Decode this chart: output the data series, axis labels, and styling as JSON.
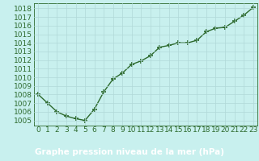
{
  "x": [
    0,
    1,
    2,
    3,
    4,
    5,
    6,
    7,
    8,
    9,
    10,
    11,
    12,
    13,
    14,
    15,
    16,
    17,
    18,
    19,
    20,
    21,
    22,
    23
  ],
  "y": [
    1008,
    1007,
    1006,
    1005.5,
    1005.2,
    1005,
    1006.3,
    1008.3,
    1009.8,
    1010.5,
    1011.5,
    1011.9,
    1012.5,
    1013.5,
    1013.7,
    1014.0,
    1014.0,
    1014.3,
    1015.3,
    1015.7,
    1015.8,
    1016.5,
    1017.2,
    1018.1
  ],
  "line_color": "#2d6a2d",
  "marker": "+",
  "marker_size": 4,
  "marker_lw": 1.2,
  "line_width": 1.0,
  "plot_bg_color": "#c8f0ee",
  "fig_bg_color": "#c8f0ee",
  "label_bar_color": "#1a5c1a",
  "label_bar_text_color": "#ffffff",
  "grid_color": "#b0d8d8",
  "grid_lw": 0.5,
  "ylabel_ticks": [
    1005,
    1006,
    1007,
    1008,
    1009,
    1010,
    1011,
    1012,
    1013,
    1014,
    1015,
    1016,
    1017,
    1018
  ],
  "xlabel": "Graphe pression niveau de la mer (hPa)",
  "xlabel_fontsize": 7.5,
  "tick_fontsize": 6.5,
  "ylim": [
    1004.4,
    1018.6
  ],
  "xlim": [
    -0.5,
    23.5
  ]
}
